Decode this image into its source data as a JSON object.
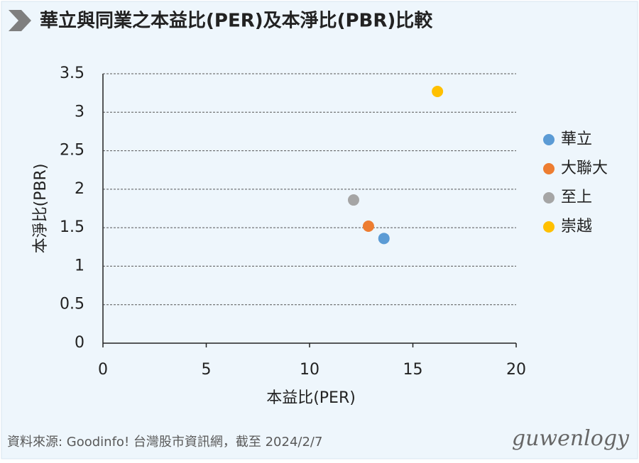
{
  "chart_data": {
    "type": "scatter",
    "title": "華立與同業之本益比(PER)及本淨比(PBR)比較",
    "x_label": "本益比(PER)",
    "y_label": "本淨比(PBR)",
    "series": [
      {
        "name": "華立",
        "color": "#5b9bd5",
        "x": [
          13.6
        ],
        "values": [
          1.36
        ]
      },
      {
        "name": "大聯大",
        "color": "#ed7d31",
        "x": [
          12.85
        ],
        "values": [
          1.52
        ]
      },
      {
        "name": "至上",
        "color": "#a5a5a5",
        "x": [
          12.13
        ],
        "values": [
          1.86
        ]
      },
      {
        "name": "崇越",
        "color": "#ffc000",
        "x": [
          16.19
        ],
        "values": [
          3.27
        ]
      }
    ],
    "xlim": [
      0,
      20
    ],
    "xticks": [
      0,
      5,
      10,
      15,
      20
    ],
    "ylim": [
      0,
      3.5
    ],
    "yticks": [
      0,
      0.5,
      1,
      1.5,
      2,
      2.5,
      3,
      3.5
    ],
    "grid": true,
    "legend": "right"
  },
  "source": "資料來源: Goodinfo! 台灣股市資訊網，截至 2024/2/7",
  "watermark": "guwenlogy"
}
